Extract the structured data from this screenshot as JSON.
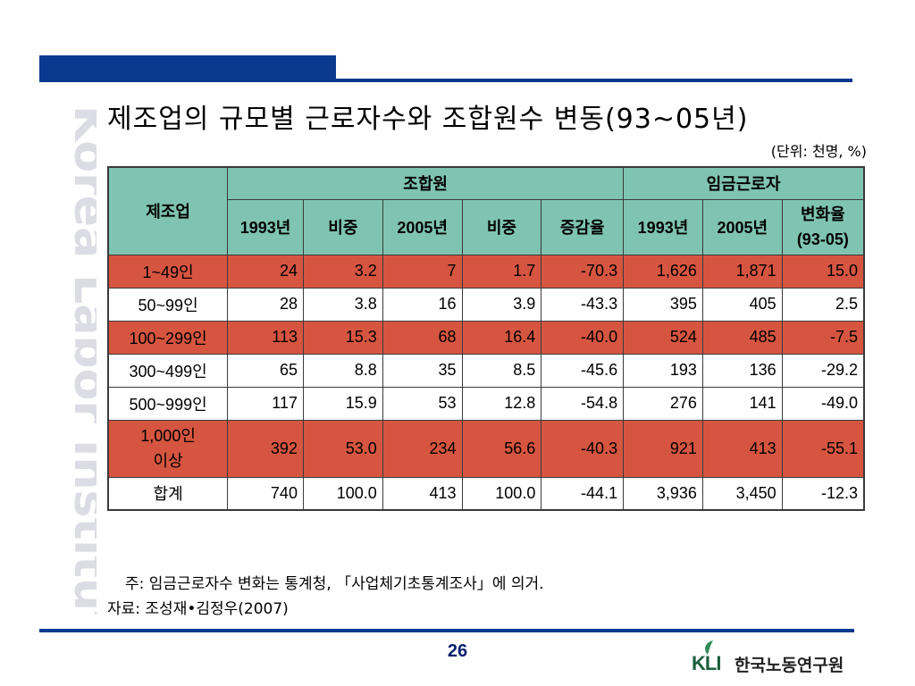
{
  "watermark": "Korea Labor Institute",
  "title": "제조업의 규모별 근로자수와 조합원수 변동(93~05년)",
  "unit_note": "(단위: 천명, %)",
  "table": {
    "corner_header": "제조업",
    "group_headers": [
      "조합원",
      "임금근로자"
    ],
    "sub_headers": [
      "1993년",
      "비중",
      "2005년",
      "비중",
      "증감율",
      "1993년",
      "2005년"
    ],
    "last_header_line1": "변화율",
    "last_header_line2": "(93-05)",
    "rows": [
      {
        "label": "1~49인",
        "label2": "",
        "values": [
          "24",
          "3.2",
          "7",
          "1.7",
          "-70.3",
          "1,626",
          "1,871",
          "15.0"
        ],
        "style": "red"
      },
      {
        "label": "50~99인",
        "label2": "",
        "values": [
          "28",
          "3.8",
          "16",
          "3.9",
          "-43.3",
          "395",
          "405",
          "2.5"
        ],
        "style": "white"
      },
      {
        "label": "100~299인",
        "label2": "",
        "values": [
          "113",
          "15.3",
          "68",
          "16.4",
          "-40.0",
          "524",
          "485",
          "-7.5"
        ],
        "style": "red"
      },
      {
        "label": "300~499인",
        "label2": "",
        "values": [
          "65",
          "8.8",
          "35",
          "8.5",
          "-45.6",
          "193",
          "136",
          "-29.2"
        ],
        "style": "white"
      },
      {
        "label": "500~999인",
        "label2": "",
        "values": [
          "117",
          "15.9",
          "53",
          "12.8",
          "-54.8",
          "276",
          "141",
          "-49.0"
        ],
        "style": "white"
      },
      {
        "label": "1,000인",
        "label2": "이상",
        "values": [
          "392",
          "53.0",
          "234",
          "56.6",
          "-40.3",
          "921",
          "413",
          "-55.1"
        ],
        "style": "red"
      },
      {
        "label": "합계",
        "label2": "",
        "values": [
          "740",
          "100.0",
          "413",
          "100.0",
          "-44.1",
          "3,936",
          "3,450",
          "-12.3"
        ],
        "style": "white"
      }
    ]
  },
  "footnote_note": "주: 임금근로자수 변화는 통계청, 「사업체기초통계조사」에 의거.",
  "footnote_source": "자료: 조성재•김정우(2007)",
  "page_number": "26",
  "logo": {
    "mark": "KLI",
    "name": "한국노동연구원"
  },
  "colors": {
    "header_bg": "#7fc4b2",
    "highlight_row": "#d65540",
    "accent_blue": "#0a3a8f"
  }
}
